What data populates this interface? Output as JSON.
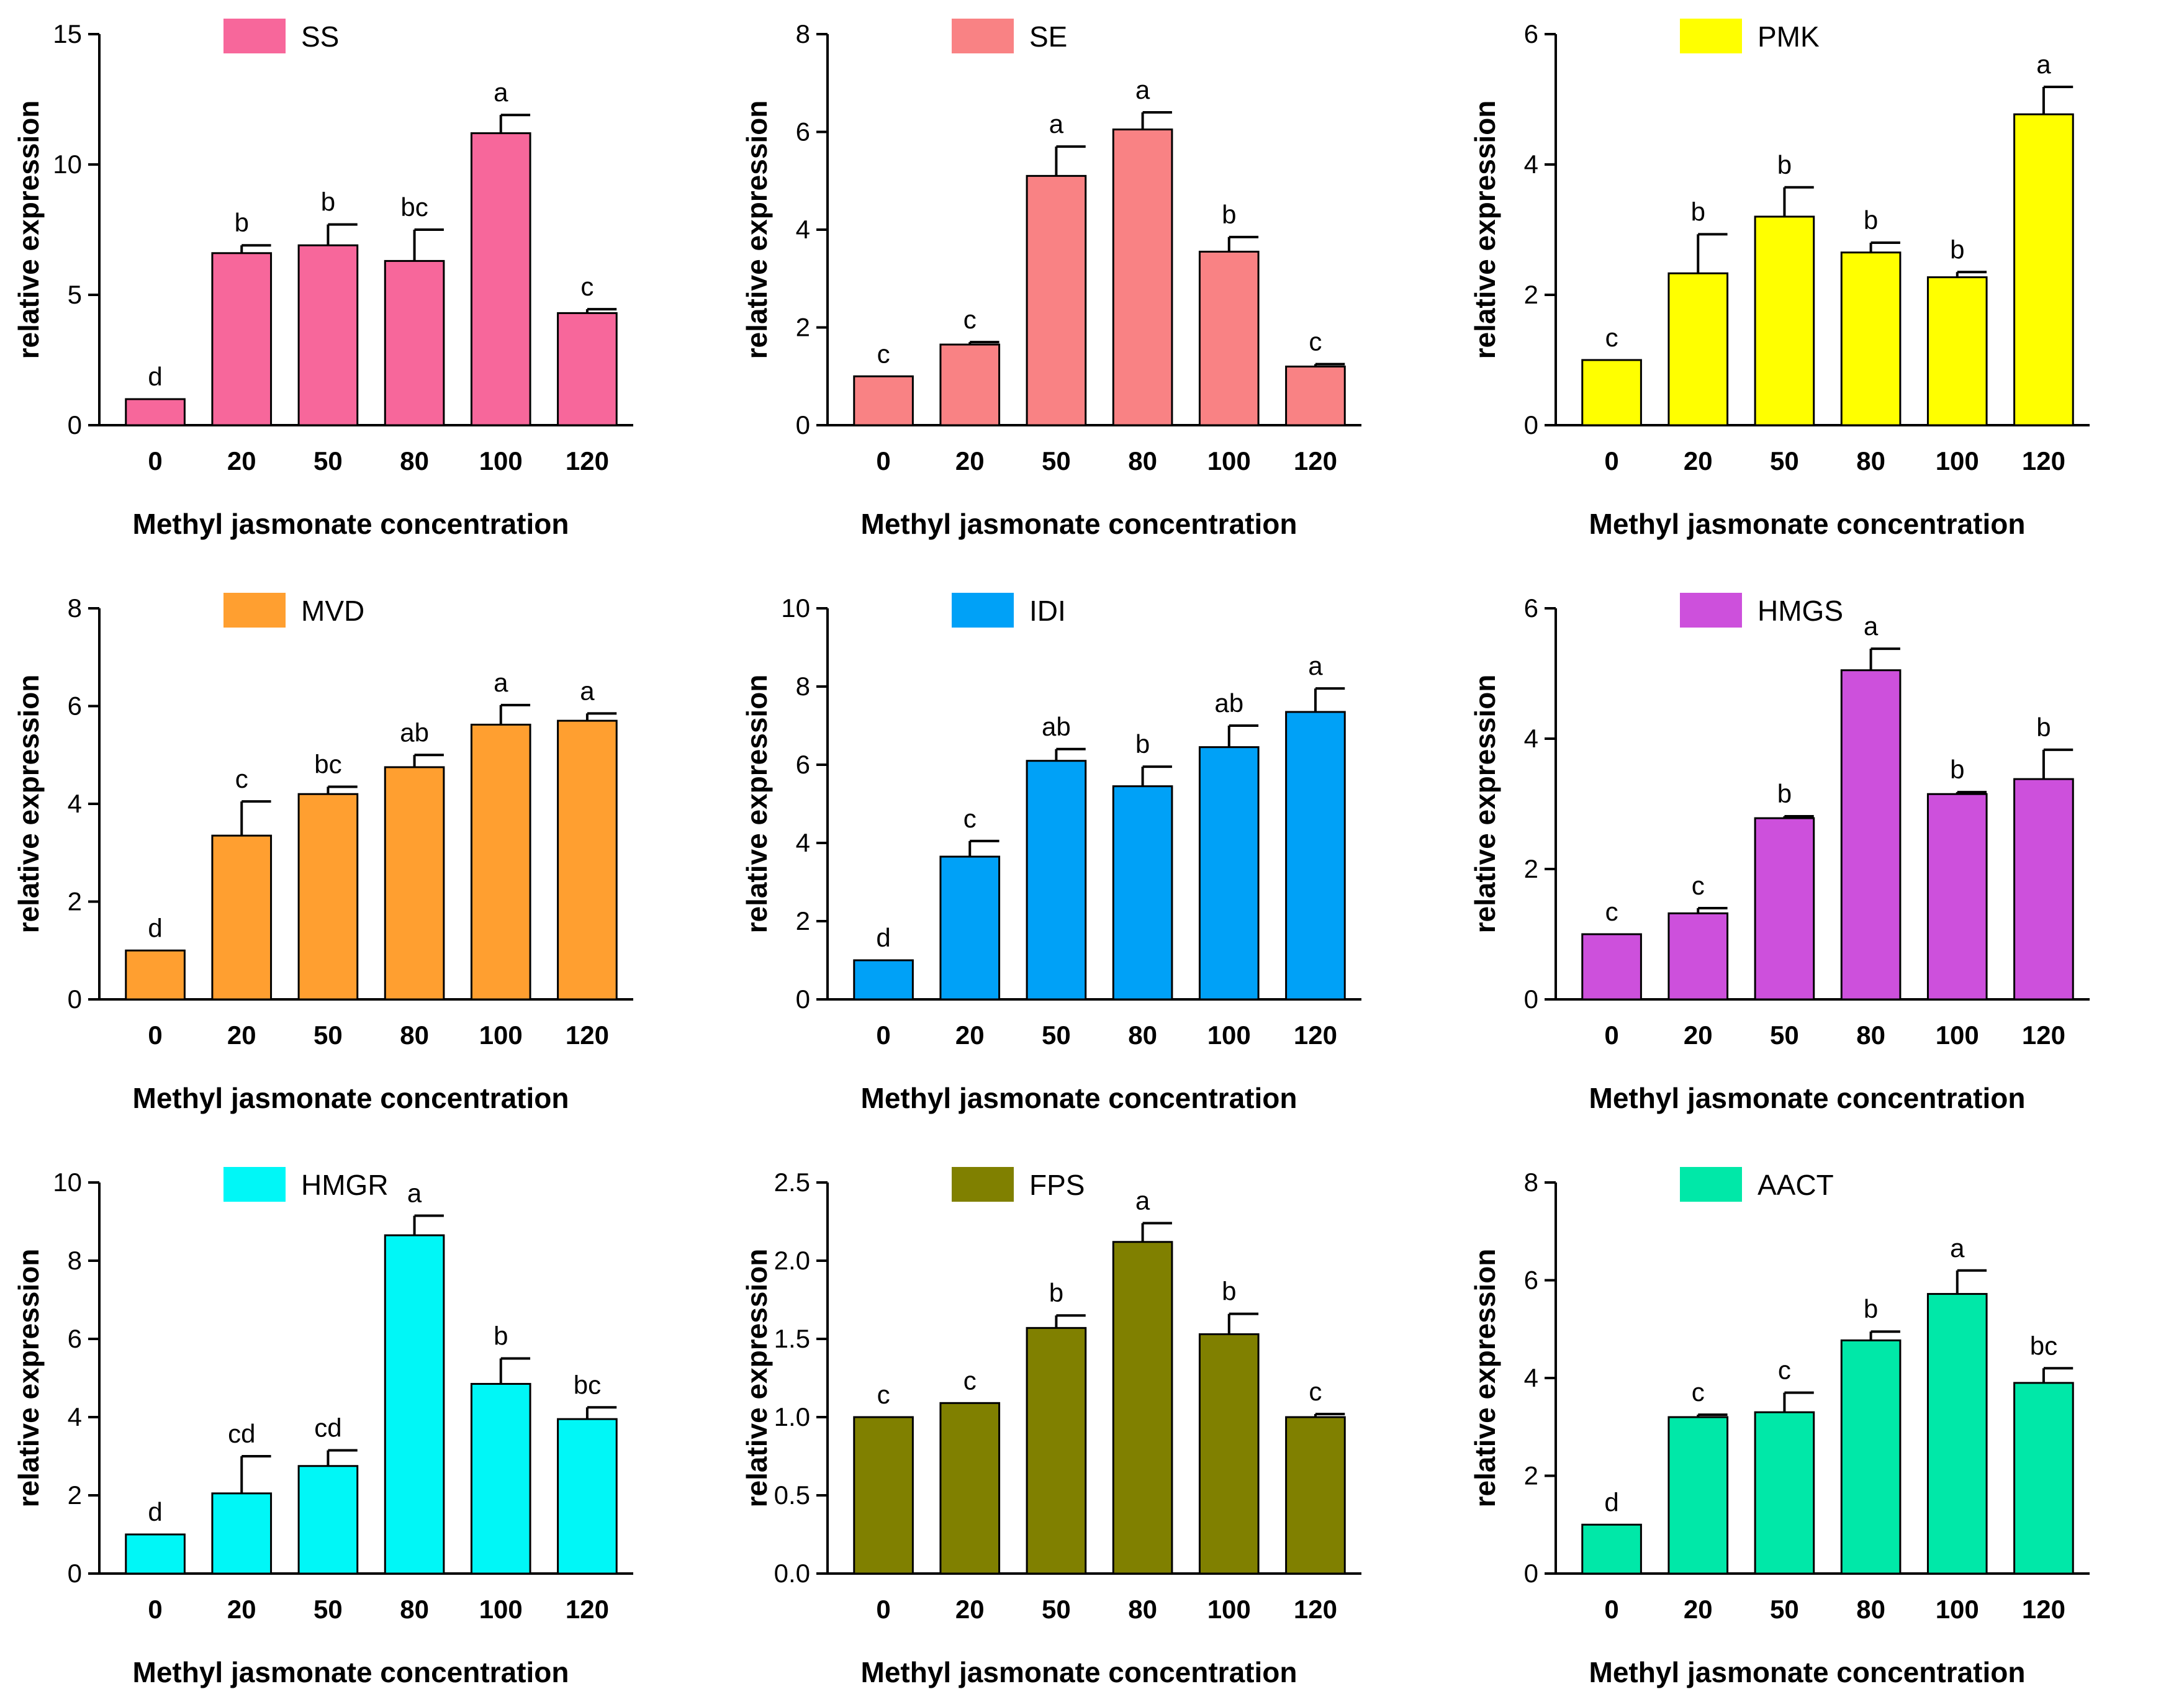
{
  "chart_data": [
    {
      "type": "bar",
      "title": "",
      "legend": "SS",
      "color": "#f7679b",
      "categories": [
        "0",
        "20",
        "50",
        "80",
        "100",
        "120"
      ],
      "values": [
        1.0,
        6.6,
        6.9,
        6.3,
        11.2,
        4.3
      ],
      "errors": [
        0,
        0.3,
        0.8,
        1.2,
        0.7,
        0.15
      ],
      "significance": [
        "d",
        "b",
        "b",
        "bc",
        "a",
        "c"
      ],
      "xlabel": "Methyl jasmonate concentration",
      "ylabel": "relative expression",
      "ylim": [
        0,
        15
      ],
      "yticks": [
        "0",
        "5",
        "10",
        "15"
      ]
    },
    {
      "type": "bar",
      "title": "",
      "legend": "SE",
      "color": "#f98284",
      "categories": [
        "0",
        "20",
        "50",
        "80",
        "100",
        "120"
      ],
      "values": [
        1.0,
        1.65,
        5.1,
        6.05,
        3.55,
        1.2
      ],
      "errors": [
        0,
        0.05,
        0.6,
        0.35,
        0.3,
        0.05
      ],
      "significance": [
        "c",
        "c",
        "a",
        "a",
        "b",
        "c"
      ],
      "xlabel": "Methyl jasmonate concentration",
      "ylabel": "relative expression",
      "ylim": [
        0,
        8
      ],
      "yticks": [
        "0",
        "2",
        "4",
        "6",
        "8"
      ]
    },
    {
      "type": "bar",
      "title": "",
      "legend": "PMK",
      "color": "#ffff00",
      "categories": [
        "0",
        "20",
        "50",
        "80",
        "100",
        "120"
      ],
      "values": [
        1.0,
        2.33,
        3.2,
        2.65,
        2.27,
        4.77
      ],
      "errors": [
        0,
        0.6,
        0.45,
        0.15,
        0.08,
        0.42
      ],
      "significance": [
        "c",
        "b",
        "b",
        "b",
        "b",
        "a"
      ],
      "xlabel": "Methyl jasmonate concentration",
      "ylabel": "relative expression",
      "ylim": [
        0,
        6
      ],
      "yticks": [
        "0",
        "2",
        "4",
        "6"
      ]
    },
    {
      "type": "bar",
      "title": "",
      "legend": "MVD",
      "color": "#ff9f30",
      "categories": [
        "0",
        "20",
        "50",
        "80",
        "100",
        "120"
      ],
      "values": [
        1.0,
        3.35,
        4.2,
        4.75,
        5.62,
        5.7
      ],
      "errors": [
        0,
        0.7,
        0.15,
        0.25,
        0.4,
        0.15
      ],
      "significance": [
        "d",
        "c",
        "bc",
        "ab",
        "a",
        "a"
      ],
      "xlabel": "Methyl jasmonate concentration",
      "ylabel": "relative expression",
      "ylim": [
        0,
        8
      ],
      "yticks": [
        "0",
        "2",
        "4",
        "6",
        "8"
      ]
    },
    {
      "type": "bar",
      "title": "",
      "legend": "IDI",
      "color": "#00a1f7",
      "categories": [
        "0",
        "20",
        "50",
        "80",
        "100",
        "120"
      ],
      "values": [
        1.0,
        3.65,
        6.1,
        5.45,
        6.45,
        7.35
      ],
      "errors": [
        0,
        0.4,
        0.3,
        0.5,
        0.55,
        0.6
      ],
      "significance": [
        "d",
        "c",
        "ab",
        "b",
        "ab",
        "a"
      ],
      "xlabel": "Methyl jasmonate concentration",
      "ylabel": "relative expression",
      "ylim": [
        0,
        10
      ],
      "yticks": [
        "0",
        "2",
        "4",
        "6",
        "8",
        "10"
      ]
    },
    {
      "type": "bar",
      "title": "",
      "legend": "HMGS",
      "color": "#cd50dc",
      "categories": [
        "0",
        "20",
        "50",
        "80",
        "100",
        "120"
      ],
      "values": [
        1.0,
        1.32,
        2.78,
        5.05,
        3.15,
        3.38
      ],
      "errors": [
        0,
        0.08,
        0.03,
        0.33,
        0.03,
        0.45
      ],
      "significance": [
        "c",
        "c",
        "b",
        "a",
        "b",
        "b"
      ],
      "xlabel": "Methyl jasmonate concentration",
      "ylabel": "relative expression",
      "ylim": [
        0,
        6
      ],
      "yticks": [
        "0",
        "2",
        "4",
        "6"
      ]
    },
    {
      "type": "bar",
      "title": "",
      "legend": "HMGR",
      "color": "#00f7f7",
      "categories": [
        "0",
        "20",
        "50",
        "80",
        "100",
        "120"
      ],
      "values": [
        1.0,
        2.05,
        2.75,
        8.65,
        4.85,
        3.95
      ],
      "errors": [
        0,
        0.95,
        0.4,
        0.5,
        0.65,
        0.3
      ],
      "significance": [
        "d",
        "cd",
        "cd",
        "a",
        "b",
        "bc"
      ],
      "xlabel": "Methyl jasmonate concentration",
      "ylabel": "relative expression",
      "ylim": [
        0,
        10
      ],
      "yticks": [
        "0",
        "2",
        "4",
        "6",
        "8",
        "10"
      ]
    },
    {
      "type": "bar",
      "title": "",
      "legend": "FPS",
      "color": "#808000",
      "categories": [
        "0",
        "20",
        "50",
        "80",
        "100",
        "120"
      ],
      "values": [
        1.0,
        1.09,
        1.57,
        2.12,
        1.53,
        1.0
      ],
      "errors": [
        0,
        0,
        0.08,
        0.12,
        0.13,
        0.02
      ],
      "significance": [
        "c",
        "c",
        "b",
        "a",
        "b",
        "c"
      ],
      "xlabel": "Methyl jasmonate concentration",
      "ylabel": "relative expression",
      "ylim": [
        0,
        2.5
      ],
      "yticks": [
        "0.0",
        "0.5",
        "1.0",
        "1.5",
        "2.0",
        "2.5"
      ]
    },
    {
      "type": "bar",
      "title": "",
      "legend": "AACT",
      "color": "#00e8a8",
      "categories": [
        "0",
        "20",
        "50",
        "80",
        "100",
        "120"
      ],
      "values": [
        1.0,
        3.2,
        3.3,
        4.77,
        5.72,
        3.9
      ],
      "errors": [
        0,
        0.05,
        0.4,
        0.18,
        0.48,
        0.3
      ],
      "significance": [
        "d",
        "c",
        "c",
        "b",
        "a",
        "bc"
      ],
      "xlabel": "Methyl jasmonate concentration",
      "ylabel": "relative expression",
      "ylim": [
        0,
        8
      ],
      "yticks": [
        "0",
        "2",
        "4",
        "6",
        "8"
      ]
    }
  ]
}
